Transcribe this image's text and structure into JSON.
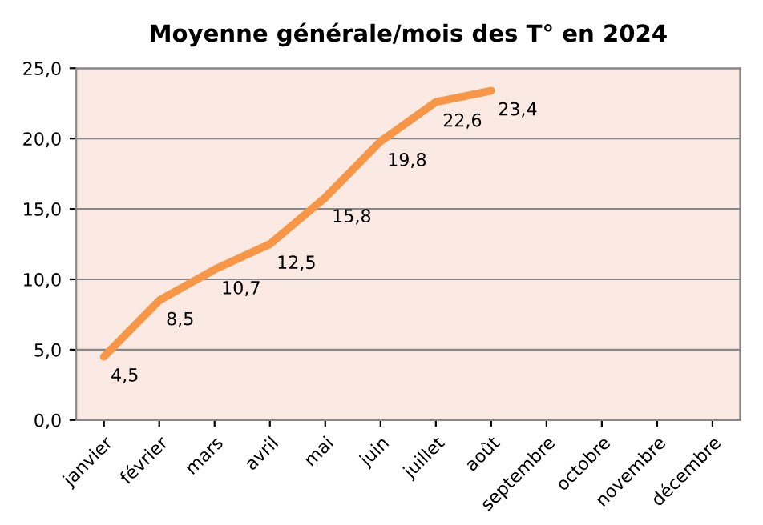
{
  "chart_data": {
    "type": "line",
    "title": "Moyenne générale/mois des T° en 2024",
    "categories": [
      "janvier",
      "février",
      "mars",
      "avril",
      "mai",
      "juin",
      "juillet",
      "août",
      "septembre",
      "octobre",
      "novembre",
      "décembre"
    ],
    "series": [
      {
        "color": "#f79646",
        "values": [
          4.5,
          8.5,
          10.7,
          12.5,
          15.8,
          19.8,
          22.6,
          23.4,
          null,
          null,
          null,
          null
        ],
        "value_labels": [
          "4,5",
          "8,5",
          "10,7",
          "12,5",
          "15,8",
          "19,8",
          "22,6",
          "23,4",
          null,
          null,
          null,
          null
        ]
      }
    ],
    "ylim": [
      0,
      25
    ],
    "yticks": [
      {
        "value": 0,
        "label": "0,0"
      },
      {
        "value": 5,
        "label": "5,0"
      },
      {
        "value": 10,
        "label": "10,0"
      },
      {
        "value": 15,
        "label": "15,0"
      },
      {
        "value": 20,
        "label": "20,0"
      },
      {
        "value": 25,
        "label": "25,0"
      }
    ],
    "grid": "y",
    "marker": "none",
    "line_style": "solid"
  }
}
